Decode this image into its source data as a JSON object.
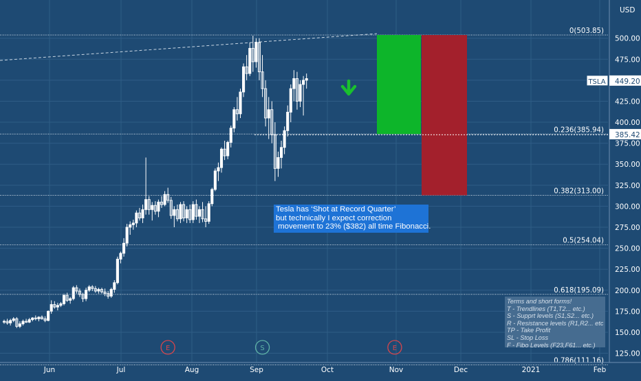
{
  "chart_data": {
    "type": "candlestick",
    "symbol": "TSLA",
    "currency": "USD",
    "last_price": "449.20",
    "reference_price": "385.42",
    "y_ticks": [
      125,
      150,
      175,
      200,
      225,
      250,
      275,
      300,
      325,
      350,
      375,
      400,
      425,
      450,
      475,
      500
    ],
    "x_labels": [
      "Jun",
      "Jul",
      "Aug",
      "Sep",
      "Oct",
      "Nov",
      "Dec",
      "2021",
      "Feb"
    ],
    "fib_levels": [
      {
        "label": "0(503.85)",
        "value": 503.85
      },
      {
        "label": "0.236(385.94)",
        "value": 385.94
      },
      {
        "label": "0.382(313.00)",
        "value": 313.0
      },
      {
        "label": "0.5(254.04)",
        "value": 254.04
      },
      {
        "label": "0.618(195.09)",
        "value": 195.09
      },
      {
        "label": "0.786(111.16)",
        "value": 111.16
      }
    ],
    "position": {
      "entry": 385.94,
      "target_zone_top": 503.85,
      "stop_zone_bottom": 313.0
    },
    "event_markers": [
      {
        "letter": "E",
        "date_index": 52
      },
      {
        "letter": "S",
        "date_index": 82
      },
      {
        "letter": "E",
        "date_index": 124
      }
    ],
    "candles": [
      [
        162,
        165,
        160,
        163
      ],
      [
        163,
        166,
        159,
        161
      ],
      [
        161,
        166,
        158,
        164
      ],
      [
        164,
        168,
        162,
        166
      ],
      [
        166,
        168,
        155,
        157
      ],
      [
        157,
        163,
        155,
        160
      ],
      [
        160,
        165,
        158,
        163
      ],
      [
        163,
        166,
        161,
        162
      ],
      [
        162,
        167,
        161,
        165
      ],
      [
        165,
        168,
        163,
        167
      ],
      [
        167,
        170,
        164,
        166
      ],
      [
        166,
        169,
        163,
        168
      ],
      [
        168,
        170,
        165,
        166
      ],
      [
        166,
        169,
        162,
        164
      ],
      [
        164,
        176,
        163,
        175
      ],
      [
        175,
        188,
        172,
        183
      ],
      [
        183,
        187,
        178,
        180
      ],
      [
        180,
        185,
        176,
        182
      ],
      [
        182,
        186,
        180,
        184
      ],
      [
        184,
        196,
        182,
        194
      ],
      [
        194,
        197,
        186,
        188
      ],
      [
        188,
        192,
        184,
        190
      ],
      [
        190,
        205,
        188,
        203
      ],
      [
        203,
        206,
        196,
        199
      ],
      [
        199,
        202,
        192,
        195
      ],
      [
        195,
        197,
        186,
        190
      ],
      [
        190,
        203,
        187,
        200
      ],
      [
        200,
        206,
        198,
        204
      ],
      [
        204,
        206,
        199,
        202
      ],
      [
        202,
        205,
        197,
        199
      ],
      [
        199,
        203,
        196,
        201
      ],
      [
        201,
        203,
        196,
        198
      ],
      [
        198,
        202,
        193,
        196
      ],
      [
        196,
        199,
        190,
        193
      ],
      [
        193,
        203,
        191,
        201
      ],
      [
        201,
        212,
        197,
        209
      ],
      [
        209,
        240,
        207,
        237
      ],
      [
        237,
        246,
        232,
        244
      ],
      [
        244,
        262,
        240,
        256
      ],
      [
        256,
        279,
        252,
        275
      ],
      [
        275,
        282,
        266,
        278
      ],
      [
        278,
        284,
        272,
        280
      ],
      [
        280,
        295,
        275,
        292
      ],
      [
        292,
        298,
        283,
        286
      ],
      [
        286,
        302,
        280,
        296
      ],
      [
        296,
        358,
        290,
        308
      ],
      [
        308,
        312,
        290,
        296
      ],
      [
        296,
        305,
        283,
        301
      ],
      [
        301,
        306,
        290,
        294
      ],
      [
        294,
        308,
        287,
        305
      ],
      [
        305,
        312,
        298,
        302
      ],
      [
        302,
        318,
        300,
        314
      ],
      [
        314,
        322,
        304,
        307
      ],
      [
        307,
        311,
        285,
        289
      ],
      [
        289,
        300,
        275,
        296
      ],
      [
        296,
        302,
        282,
        285
      ],
      [
        285,
        305,
        280,
        302
      ],
      [
        302,
        306,
        282,
        286
      ],
      [
        286,
        300,
        280,
        296
      ],
      [
        296,
        302,
        280,
        284
      ],
      [
        284,
        306,
        280,
        302
      ],
      [
        302,
        308,
        284,
        288
      ],
      [
        288,
        300,
        280,
        296
      ],
      [
        296,
        305,
        281,
        285
      ],
      [
        285,
        300,
        275,
        282
      ],
      [
        282,
        306,
        279,
        303
      ],
      [
        303,
        322,
        300,
        320
      ],
      [
        320,
        345,
        318,
        342
      ],
      [
        342,
        352,
        330,
        346
      ],
      [
        346,
        370,
        340,
        368
      ],
      [
        368,
        378,
        355,
        360
      ],
      [
        360,
        378,
        356,
        376
      ],
      [
        376,
        396,
        370,
        393
      ],
      [
        393,
        418,
        388,
        415
      ],
      [
        415,
        430,
        402,
        410
      ],
      [
        410,
        440,
        405,
        436
      ],
      [
        436,
        470,
        430,
        466
      ],
      [
        466,
        480,
        450,
        458
      ],
      [
        458,
        495,
        455,
        488
      ],
      [
        488,
        503,
        460,
        472
      ],
      [
        472,
        500,
        465,
        495
      ],
      [
        495,
        500,
        450,
        460
      ],
      [
        460,
        480,
        430,
        440
      ],
      [
        440,
        450,
        395,
        405
      ],
      [
        405,
        430,
        380,
        415
      ],
      [
        415,
        425,
        375,
        385
      ],
      [
        385,
        400,
        330,
        345
      ],
      [
        345,
        365,
        335,
        358
      ],
      [
        358,
        378,
        345,
        370
      ],
      [
        370,
        395,
        362,
        390
      ],
      [
        390,
        420,
        383,
        412
      ],
      [
        412,
        445,
        400,
        440
      ],
      [
        440,
        462,
        425,
        452
      ],
      [
        452,
        460,
        415,
        425
      ],
      [
        425,
        450,
        418,
        445
      ],
      [
        445,
        455,
        408,
        450
      ],
      [
        450,
        458,
        440,
        452
      ]
    ]
  },
  "annotations": {
    "note_lines": [
      "Tesla has ‘Shot at Record Quarter’",
      "but technically I expect correction",
      " movement to 23% ($382) all time Fibonacci."
    ],
    "terms_lines": [
      "Terms and short forms!",
      "T - Trendlines (T1,T2... etc.)",
      "S - Supprt levels (S1,S2... etc.)",
      "R - Resistance levels (R1,R2... etc.)",
      "TP - Take Profit",
      "SL - Stop Loss",
      "F - Fibo Levels  (F23,F61... etc.)"
    ]
  },
  "colors": {
    "background": "#1e4a73",
    "grid": "#2f5d86",
    "candle_up": "#ffffff",
    "candle_down": "#ffffff",
    "target_zone": "#0db52a",
    "stop_zone": "#a3202c",
    "arrow": "#19c02e",
    "marker_e": "#d8454b",
    "marker_s": "#5fb3a6"
  }
}
